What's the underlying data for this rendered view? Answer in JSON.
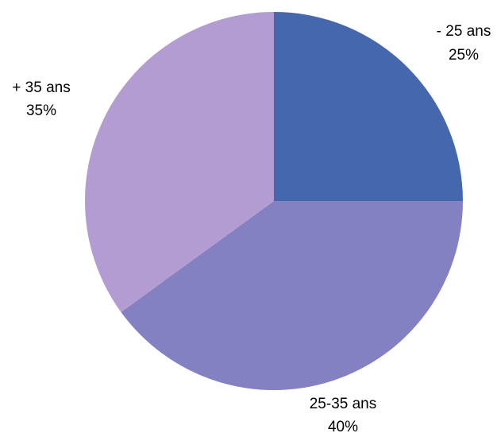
{
  "chart_data": {
    "type": "pie",
    "slices": [
      {
        "label": "- 25 ans",
        "value": 25,
        "value_label": "25%",
        "color": "#4467AE"
      },
      {
        "label": "25-35 ans",
        "value": 40,
        "value_label": "40%",
        "color": "#8381C1"
      },
      {
        "label": "+ 35 ans",
        "value": 35,
        "value_label": "35%",
        "color": "#B39CD1"
      }
    ],
    "start_angle": "12 o'clock",
    "direction": "clockwise",
    "legend": "none"
  }
}
